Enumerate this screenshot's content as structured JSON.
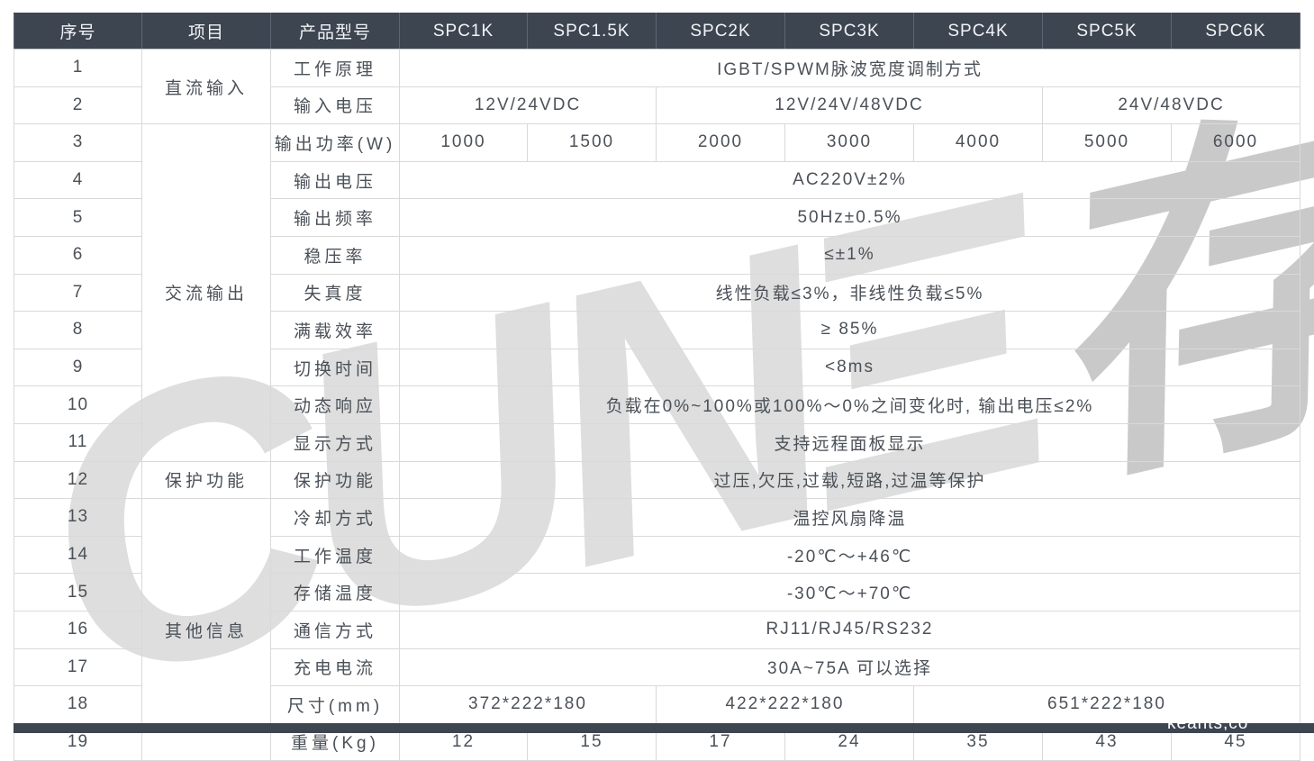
{
  "header": {
    "columns": [
      "序号",
      "项目",
      "产品型号",
      "SPC1K",
      "SPC1.5K",
      "SPC2K",
      "SPC3K",
      "SPC4K",
      "SPC5K",
      "SPC6K"
    ]
  },
  "table": {
    "rows": [
      {
        "no": "1",
        "group": {
          "text": "直流输入",
          "rowspan": 2
        },
        "item": "工作原理",
        "values": [
          {
            "text": "IGBT/SPWM脉波宽度调制方式",
            "colspan": 7
          }
        ]
      },
      {
        "no": "2",
        "item": "输入电压",
        "values": [
          {
            "text": "12V/24VDC",
            "colspan": 2
          },
          {
            "text": "12V/24V/48VDC",
            "colspan": 3
          },
          {
            "text": "24V/48VDC",
            "colspan": 2
          }
        ]
      },
      {
        "no": "3",
        "group": {
          "text": "交流输出",
          "rowspan": 9
        },
        "item": "输出功率(W)",
        "values": [
          {
            "text": "1000"
          },
          {
            "text": "1500"
          },
          {
            "text": "2000"
          },
          {
            "text": "3000"
          },
          {
            "text": "4000"
          },
          {
            "text": "5000"
          },
          {
            "text": "6000"
          }
        ]
      },
      {
        "no": "4",
        "item": "输出电压",
        "values": [
          {
            "text": "AC220V±2%",
            "colspan": 7
          }
        ]
      },
      {
        "no": "5",
        "item": "输出频率",
        "values": [
          {
            "text": "50Hz±0.5%",
            "colspan": 7
          }
        ]
      },
      {
        "no": "6",
        "item": "稳压率",
        "values": [
          {
            "text": "≤±1%",
            "colspan": 7
          }
        ]
      },
      {
        "no": "7",
        "item": "失真度",
        "values": [
          {
            "text": "线性负载≤3%，非线性负载≤5%",
            "colspan": 7
          }
        ]
      },
      {
        "no": "8",
        "item": "满载效率",
        "values": [
          {
            "text": "≥ 85%",
            "colspan": 7
          }
        ]
      },
      {
        "no": "9",
        "item": "切换时间",
        "values": [
          {
            "text": "<8ms",
            "colspan": 7
          }
        ]
      },
      {
        "no": "10",
        "item": "动态响应",
        "values": [
          {
            "text": "负载在0%~100%或100%～0%之间变化时, 输出电压≤2%",
            "colspan": 7
          }
        ]
      },
      {
        "no": "11",
        "item": "显示方式",
        "values": [
          {
            "text": "支持远程面板显示",
            "colspan": 7
          }
        ]
      },
      {
        "no": "12",
        "group": {
          "text": "保护功能",
          "rowspan": 1
        },
        "item": "保护功能",
        "values": [
          {
            "text": "过压,欠压,过载,短路,过温等保护",
            "colspan": 7
          }
        ]
      },
      {
        "no": "13",
        "group": {
          "text": "其他信息",
          "rowspan": 7
        },
        "item": "冷却方式",
        "values": [
          {
            "text": "温控风扇降温",
            "colspan": 7
          }
        ]
      },
      {
        "no": "14",
        "item": "工作温度",
        "values": [
          {
            "text": "-20℃～+46℃",
            "colspan": 7
          }
        ]
      },
      {
        "no": "15",
        "item": "存储温度",
        "values": [
          {
            "text": "-30℃～+70℃",
            "colspan": 7
          }
        ]
      },
      {
        "no": "16",
        "item": "通信方式",
        "values": [
          {
            "text": "RJ11/RJ45/RS232",
            "colspan": 7
          }
        ]
      },
      {
        "no": "17",
        "item": "充电电流",
        "values": [
          {
            "text": "30A~75A 可以选择",
            "colspan": 7
          }
        ]
      },
      {
        "no": "18",
        "item": "尺寸(mm)",
        "values": [
          {
            "text": "372*222*180",
            "colspan": 2
          },
          {
            "text": "422*222*180",
            "colspan": 2
          },
          {
            "text": "651*222*180",
            "colspan": 3
          }
        ]
      },
      {
        "no": "19",
        "item": "重量(Kg)",
        "values": [
          {
            "text": "12"
          },
          {
            "text": "15"
          },
          {
            "text": "17"
          },
          {
            "text": "24"
          },
          {
            "text": "35"
          },
          {
            "text": "43"
          },
          {
            "text": "45"
          }
        ]
      }
    ]
  },
  "watermark": {
    "latin": "CUNΞ",
    "cjk": "存能"
  },
  "footer": {
    "watermark_text": "keants,co"
  },
  "colors": {
    "header_bg": "#3c4550",
    "body_text": "#4b5158",
    "border": "#d9d9d9",
    "bar_bg": "#3c4550",
    "watermark_gray": "#d0d0d0"
  }
}
